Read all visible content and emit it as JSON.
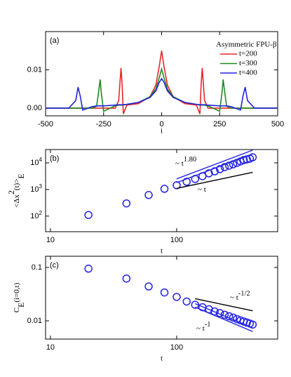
{
  "chart_data": [
    {
      "type": "line",
      "panel_label": "(a)",
      "xlabel": "i",
      "xlim": [
        -500,
        500
      ],
      "xticks": [
        -500,
        -250,
        0,
        250,
        500
      ],
      "ylim": [
        -0.002,
        0.02
      ],
      "yticks": [
        {
          "value": 0,
          "label": "0.00"
        },
        0.01
      ],
      "legend_title": "Asymmetric FPU-β",
      "legend": "upper right",
      "x": [
        -500,
        -400,
        -370,
        -360,
        -350,
        -340,
        -300,
        -280,
        -270,
        -265,
        -260,
        -250,
        -200,
        -185,
        -175,
        -170,
        -165,
        -150,
        -100,
        -50,
        -25,
        -10,
        0,
        10,
        25,
        50,
        100,
        150,
        165,
        170,
        175,
        185,
        200,
        250,
        260,
        265,
        270,
        280,
        300,
        340,
        350,
        360,
        370,
        400,
        500
      ],
      "series": [
        {
          "name": "t=200",
          "color": "#e8262b",
          "values": [
            0,
            0,
            0,
            0,
            0,
            0,
            0,
            0,
            0,
            0,
            0,
            0,
            0,
            0.002,
            0.0105,
            0.006,
            -0.0015,
            0.0008,
            0.0012,
            0.003,
            0.006,
            0.011,
            0.015,
            0.011,
            0.006,
            0.003,
            0.0012,
            0.0008,
            -0.0015,
            0.006,
            0.0105,
            0.002,
            0,
            0,
            0,
            0,
            0,
            0,
            0,
            0,
            0,
            0,
            0,
            0,
            0
          ]
        },
        {
          "name": "t=300",
          "color": "#1f8a1f",
          "values": [
            0,
            0,
            0,
            0,
            0,
            0,
            0,
            0.0005,
            0.005,
            0.0075,
            0.004,
            -0.0008,
            0.0006,
            0.0008,
            0.0008,
            0.0008,
            0.0008,
            0.001,
            0.0015,
            0.003,
            0.005,
            0.008,
            0.0102,
            0.008,
            0.005,
            0.003,
            0.0015,
            0.001,
            0.0008,
            0.0008,
            0.0008,
            0.0008,
            0.0006,
            -0.0008,
            0.004,
            0.0075,
            0.005,
            0.0005,
            0,
            0,
            0,
            0,
            0,
            0,
            0
          ]
        },
        {
          "name": "t=400",
          "color": "#2323e0",
          "values": [
            0,
            0,
            0.002,
            0.0055,
            0.003,
            -0.0005,
            0.0004,
            0.0006,
            0.0006,
            0.0006,
            0.0006,
            0.0006,
            0.0008,
            0.0009,
            0.0009,
            0.0009,
            0.0009,
            0.001,
            0.0015,
            0.0028,
            0.0045,
            0.0068,
            0.0077,
            0.0068,
            0.0045,
            0.0028,
            0.0015,
            0.001,
            0.0009,
            0.0009,
            0.0009,
            0.0009,
            0.0008,
            0.0006,
            0.0006,
            0.0006,
            0.0006,
            0.0006,
            0.0004,
            -0.0005,
            0.003,
            0.0055,
            0.002,
            0,
            0
          ]
        }
      ]
    },
    {
      "type": "scatter",
      "panel_label": "(b)",
      "xlabel": "t",
      "ylabel": [
        {
          "text": "<Δx"
        },
        {
          "text": "2",
          "pos": "sup"
        },
        {
          "text": "(t)>"
        },
        {
          "text": "E",
          "pos": "sub"
        }
      ],
      "xlog": true,
      "ylog": true,
      "xlim": [
        9.15,
        631
      ],
      "xticks": [
        10,
        100
      ],
      "ylim": [
        26,
        31600
      ],
      "yticks": [
        {
          "value": 100,
          "label": "10^2"
        },
        {
          "value": 1000,
          "label": "10^3"
        },
        {
          "value": 10000,
          "label": "10^4"
        }
      ],
      "x": [
        20,
        40,
        60,
        80,
        100,
        120,
        140,
        160,
        180,
        200,
        220,
        240,
        260,
        280,
        300,
        320,
        340,
        360,
        380,
        400
      ],
      "series": [
        {
          "mode": "markers",
          "color": "#2323e0",
          "values": [
            110,
            300,
            620,
            1060,
            1440,
            1950,
            2480,
            3150,
            4030,
            4800,
            5800,
            6950,
            7850,
            8830,
            10000,
            11300,
            12700,
            13500,
            14400,
            16200
          ]
        },
        {
          "mode": "line",
          "color": "#2323e0",
          "x": [
            100,
            400
          ],
          "values": [
            2500,
            30000
          ]
        },
        {
          "mode": "line",
          "color": "#2323e0",
          "x": [
            100,
            400
          ],
          "values": [
            1800,
            21800
          ]
        },
        {
          "mode": "line",
          "color": "#000000",
          "x": [
            100,
            400
          ],
          "values": [
            1100,
            4400
          ]
        }
      ],
      "annotations": [
        {
          "color": "#2323e0",
          "parts": [
            {
              "text": "~ t"
            },
            {
              "text": "1.80",
              "pos": "sup"
            }
          ]
        },
        {
          "color": "#000000",
          "parts": [
            {
              "text": "~ t"
            }
          ]
        }
      ]
    },
    {
      "type": "scatter",
      "panel_label": "(c)",
      "xlabel": "t",
      "ylabel": [
        {
          "text": "C"
        },
        {
          "text": "E",
          "pos": "sub"
        },
        {
          "text": "(i=0,t)"
        }
      ],
      "xlog": true,
      "ylog": true,
      "xlim": [
        9.15,
        631
      ],
      "xticks": [
        10,
        100
      ],
      "ylim": [
        0.00455,
        0.162
      ],
      "yticks": [
        0.01,
        0.1
      ],
      "x": [
        20,
        40,
        60,
        80,
        100,
        120,
        140,
        160,
        180,
        200,
        220,
        240,
        260,
        280,
        300,
        320,
        340,
        360,
        380,
        400
      ],
      "series": [
        {
          "mode": "markers",
          "color": "#2323e0",
          "values": [
            0.095,
            0.062,
            0.044,
            0.034,
            0.028,
            0.023,
            0.02,
            0.018,
            0.0165,
            0.015,
            0.014,
            0.013,
            0.0122,
            0.0115,
            0.0108,
            0.0102,
            0.0097,
            0.0093,
            0.0089,
            0.0085
          ]
        },
        {
          "mode": "line",
          "color": "#000000",
          "x": [
            140,
            400
          ],
          "values": [
            0.026,
            0.0154
          ]
        },
        {
          "mode": "line",
          "color": "#2323e0",
          "x": [
            140,
            400
          ],
          "values": [
            0.021,
            0.00735
          ]
        },
        {
          "mode": "line",
          "color": "#2323e0",
          "x": [
            140,
            400
          ],
          "values": [
            0.018,
            0.0063
          ]
        }
      ],
      "annotations": [
        {
          "color": "#000000",
          "parts": [
            {
              "text": "~ t"
            },
            {
              "text": "-1/2",
              "pos": "sup"
            }
          ]
        },
        {
          "color": "#2323e0",
          "parts": [
            {
              "text": "~ t"
            },
            {
              "text": "-1",
              "pos": "sup"
            }
          ]
        }
      ]
    }
  ]
}
